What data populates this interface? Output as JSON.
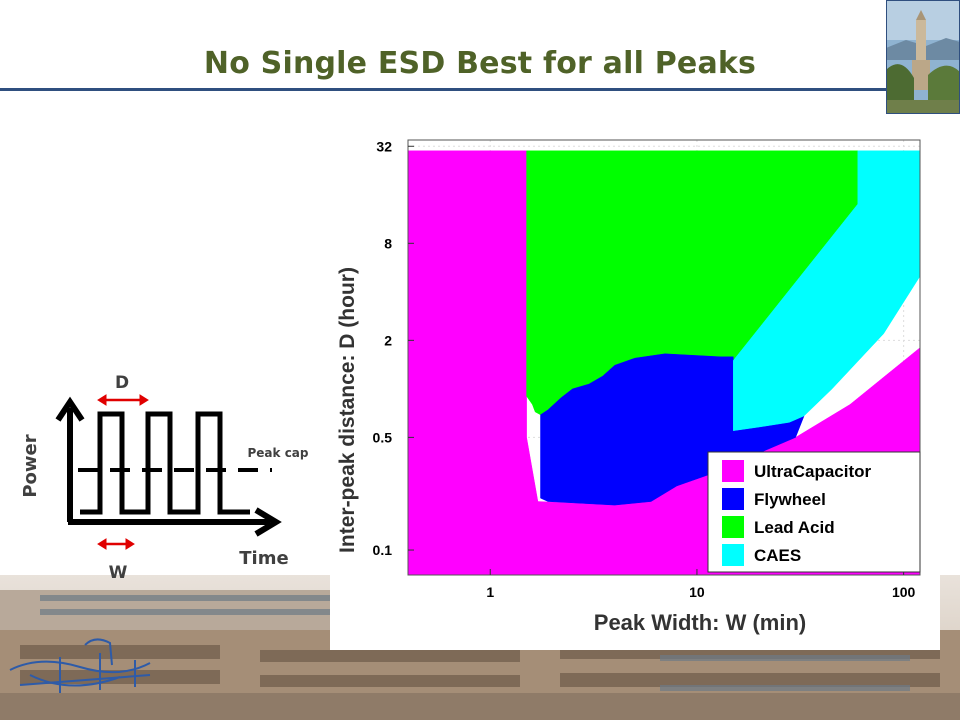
{
  "slide": {
    "title": "No Single ESD Best for all Peaks"
  },
  "diagram": {
    "power_label": "Power",
    "time_label": "Time",
    "d_label": "D",
    "w_label": "W",
    "peak_cap_label": "Peak cap"
  },
  "chart_data": {
    "type": "heatmap",
    "xlabel": "Peak Width: W (min)",
    "ylabel": "Inter-peak distance: D (hour)",
    "x_scale": "log",
    "y_scale": "log",
    "xlim": [
      0.4,
      120
    ],
    "ylim": [
      0.07,
      35
    ],
    "x_ticks": [
      {
        "value": 1,
        "label": "1"
      },
      {
        "value": 10,
        "label": "10"
      },
      {
        "value": 100,
        "label": "100"
      }
    ],
    "y_ticks": [
      {
        "value": 0.1,
        "label": "0.1"
      },
      {
        "value": 0.5,
        "label": "0.5"
      },
      {
        "value": 2,
        "label": "2"
      },
      {
        "value": 8,
        "label": "8"
      },
      {
        "value": 32,
        "label": "32"
      }
    ],
    "legend_position": "bottom-right",
    "regions": [
      {
        "name": "UltraCapacitor",
        "color": "#ff00ff",
        "points": [
          [
            0.4,
            30
          ],
          [
            1.5,
            30
          ],
          [
            1.5,
            0.5
          ],
          [
            1.7,
            0.2
          ],
          [
            4,
            0.19
          ],
          [
            6,
            0.2
          ],
          [
            8,
            0.25
          ],
          [
            12,
            0.3
          ],
          [
            20,
            0.4
          ],
          [
            30,
            0.5
          ],
          [
            55,
            0.8
          ],
          [
            120,
            1.8
          ],
          [
            120,
            0.07
          ],
          [
            0.4,
            0.07
          ]
        ]
      },
      {
        "name": "Lead Acid",
        "color": "#00ff00",
        "points": [
          [
            1.5,
            30
          ],
          [
            60,
            30
          ],
          [
            60,
            14
          ],
          [
            15,
            1.5
          ],
          [
            15,
            1.58
          ],
          [
            13,
            1.58
          ],
          [
            7,
            1.65
          ],
          [
            5,
            1.55
          ],
          [
            4,
            1.4
          ],
          [
            3.5,
            1.2
          ],
          [
            3,
            1.07
          ],
          [
            2.5,
            1.0
          ],
          [
            2.2,
            0.88
          ],
          [
            1.9,
            0.74
          ],
          [
            1.75,
            0.69
          ],
          [
            1.65,
            0.72
          ],
          [
            1.6,
            0.8
          ],
          [
            1.5,
            0.9
          ]
        ]
      },
      {
        "name": "Flywheel",
        "color": "#0000ff",
        "points": [
          [
            1.75,
            0.69
          ],
          [
            1.9,
            0.74
          ],
          [
            2.2,
            0.88
          ],
          [
            2.5,
            1.0
          ],
          [
            3,
            1.07
          ],
          [
            3.5,
            1.2
          ],
          [
            4,
            1.4
          ],
          [
            5,
            1.55
          ],
          [
            7,
            1.65
          ],
          [
            13,
            1.58
          ],
          [
            15,
            1.58
          ],
          [
            15,
            0.55
          ],
          [
            20,
            0.58
          ],
          [
            28,
            0.62
          ],
          [
            33,
            0.68
          ],
          [
            30,
            0.5
          ],
          [
            20,
            0.4
          ],
          [
            12,
            0.3
          ],
          [
            8,
            0.25
          ],
          [
            6,
            0.2
          ],
          [
            4,
            0.19
          ],
          [
            1.9,
            0.2
          ],
          [
            1.75,
            0.21
          ]
        ]
      },
      {
        "name": "CAES",
        "color": "#00ffff",
        "points": [
          [
            15,
            1.5
          ],
          [
            60,
            14
          ],
          [
            60,
            30
          ],
          [
            120,
            30
          ],
          [
            120,
            5
          ],
          [
            80,
            2.2
          ],
          [
            45,
            1.0
          ],
          [
            33,
            0.68
          ],
          [
            28,
            0.62
          ],
          [
            20,
            0.58
          ],
          [
            15,
            0.55
          ]
        ]
      }
    ],
    "legend": [
      {
        "name": "UltraCapacitor",
        "color": "#ff00ff"
      },
      {
        "name": "Flywheel",
        "color": "#0000ff"
      },
      {
        "name": "Lead Acid",
        "color": "#00ff00"
      },
      {
        "name": "CAES",
        "color": "#00ffff"
      }
    ]
  }
}
